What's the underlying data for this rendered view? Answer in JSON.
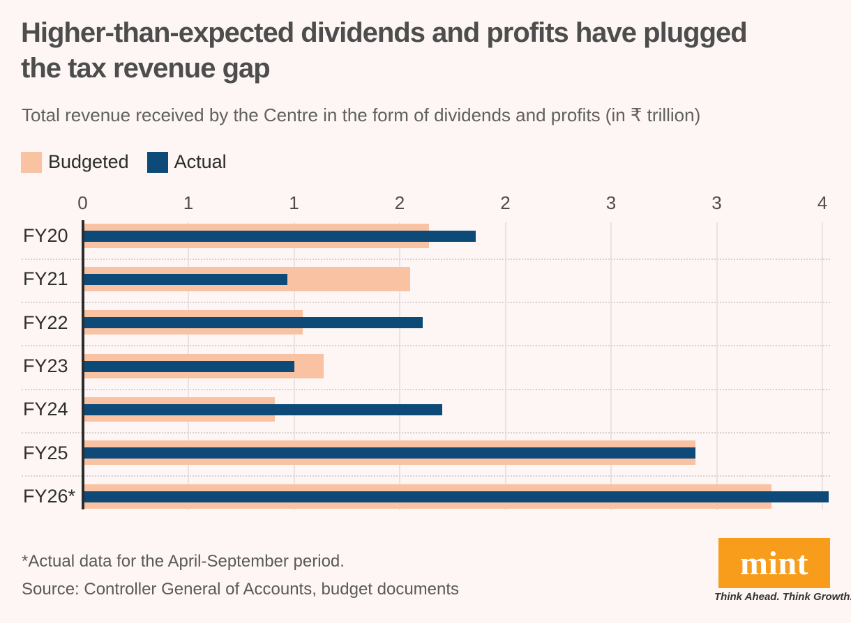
{
  "page": {
    "background_color": "#fdf6f4"
  },
  "header": {
    "title_line1": "Higher-than-expected dividends and profits have plugged",
    "title_line2": "the tax revenue gap",
    "subtitle": "Total revenue received by the Centre in the form of dividends and profits (in ₹ trillion)"
  },
  "legend": {
    "items": [
      {
        "label": "Budgeted",
        "color": "#f9c2a2"
      },
      {
        "label": "Actual",
        "color": "#0d4a78"
      }
    ]
  },
  "chart_data": {
    "type": "bar",
    "orientation": "horizontal",
    "unit": "₹ trillion",
    "title": "Total revenue received by the Centre in the form of dividends and profits (in ₹ trillion)",
    "categories": [
      "FY20",
      "FY21",
      "FY22",
      "FY23",
      "FY24",
      "FY25",
      "FY26*"
    ],
    "series": [
      {
        "name": "Budgeted",
        "color": "#f9c2a2",
        "values": [
          1.64,
          1.55,
          1.04,
          1.14,
          0.91,
          2.9,
          3.26
        ]
      },
      {
        "name": "Actual",
        "color": "#0d4a78",
        "values": [
          1.86,
          0.97,
          1.61,
          1.0,
          1.7,
          2.9,
          3.53
        ]
      }
    ],
    "x_axis": {
      "tick_values": [
        0,
        0.5,
        1,
        1.5,
        2,
        2.5,
        3,
        3.5
      ],
      "tick_labels": [
        "0",
        "1",
        "1",
        "2",
        "2",
        "3",
        "3",
        "4"
      ],
      "range": [
        0,
        3.64
      ]
    },
    "grid": true,
    "legend_position": "top",
    "axis_color": "#2c2c2c",
    "gridline_color": "#e8e3e2"
  },
  "footer": {
    "note": "*Actual data for the April-September period.",
    "source": "Source: Controller General of Accounts, budget documents",
    "logo": {
      "text": "mint",
      "tagline": "Think Ahead. Think Growth.",
      "color": "#f89c1c"
    }
  }
}
